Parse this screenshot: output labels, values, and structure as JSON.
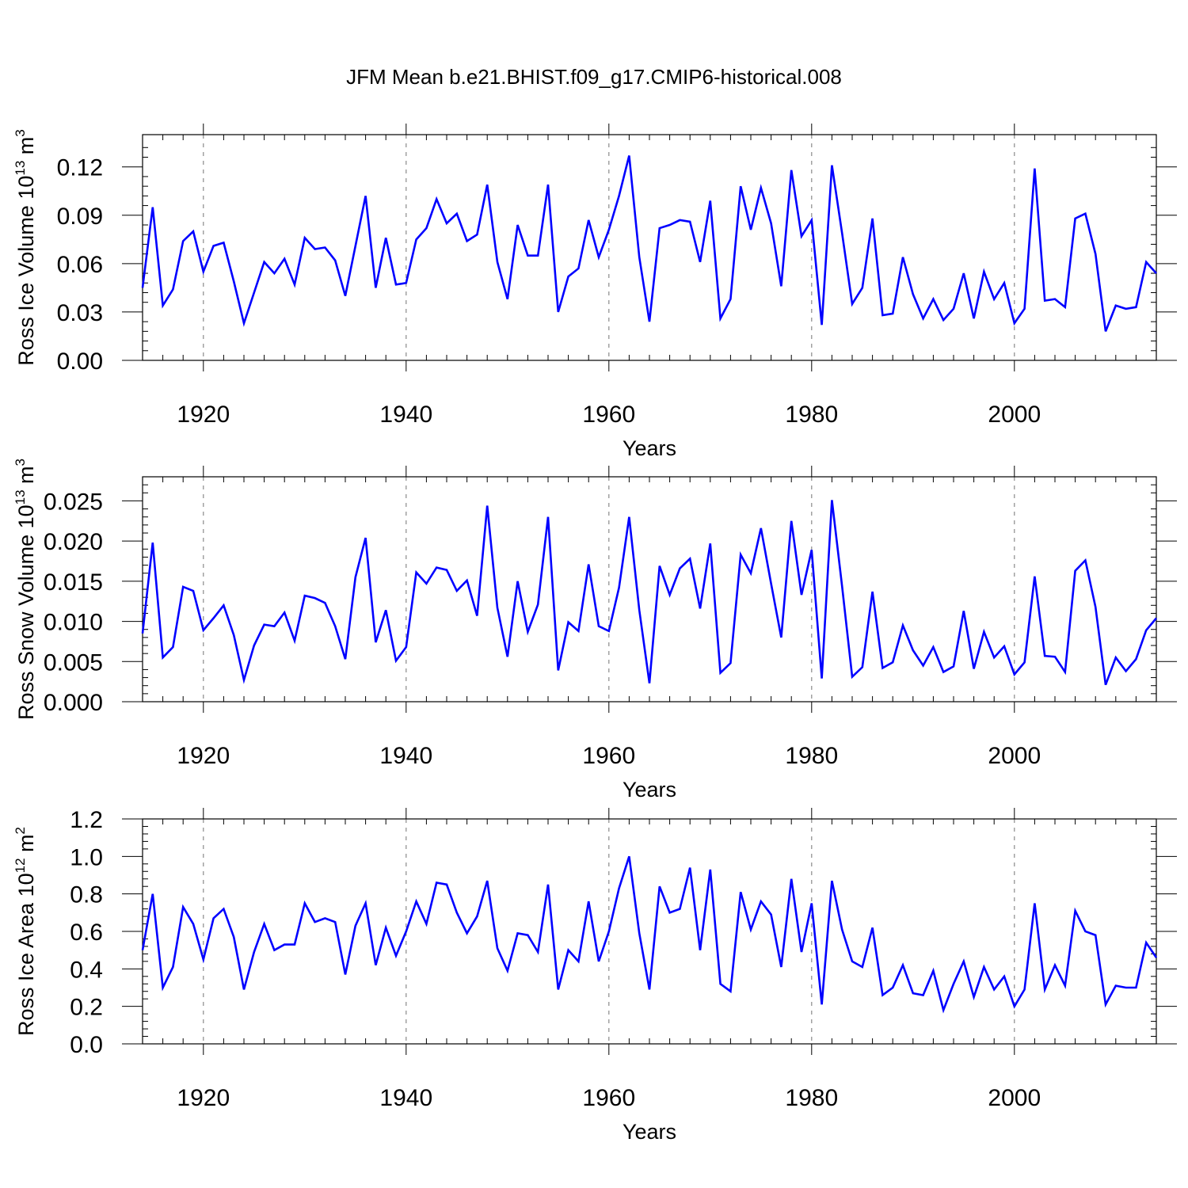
{
  "chart_data": {
    "type": "line",
    "title": "JFM Mean b.e21.BHIST.f09_g17.CMIP6-historical.008",
    "line_color": "#0000ff",
    "grid": "vertical dashed at major x ticks",
    "x": [
      1914,
      1915,
      1916,
      1917,
      1918,
      1919,
      1920,
      1921,
      1922,
      1923,
      1924,
      1925,
      1926,
      1927,
      1928,
      1929,
      1930,
      1931,
      1932,
      1933,
      1934,
      1935,
      1936,
      1937,
      1938,
      1939,
      1940,
      1941,
      1942,
      1943,
      1944,
      1945,
      1946,
      1947,
      1948,
      1949,
      1950,
      1951,
      1952,
      1953,
      1954,
      1955,
      1956,
      1957,
      1958,
      1959,
      1960,
      1961,
      1962,
      1963,
      1964,
      1965,
      1966,
      1967,
      1968,
      1969,
      1970,
      1971,
      1972,
      1973,
      1974,
      1975,
      1976,
      1977,
      1978,
      1979,
      1980,
      1981,
      1982,
      1983,
      1984,
      1985,
      1986,
      1987,
      1988,
      1989,
      1990,
      1991,
      1992,
      1993,
      1994,
      1995,
      1996,
      1997,
      1998,
      1999,
      2000,
      2001,
      2002,
      2003,
      2004,
      2005,
      2006,
      2007,
      2008,
      2009,
      2010,
      2011,
      2012,
      2013,
      2014
    ],
    "xlim": [
      1914,
      2014
    ],
    "x_ticks": [
      1920,
      1940,
      1960,
      1980,
      2000
    ],
    "x_tick_labels": [
      "1920",
      "1940",
      "1960",
      "1980",
      "2000"
    ],
    "panels": [
      {
        "name": "ross-ice-volume",
        "ylabel": "Ross Ice Volume 10",
        "ylabel_exp": "13",
        "ylabel_unit": " m",
        "ylabel_unit_exp": "3",
        "xlabel": "Years",
        "ylim": [
          0,
          0.14
        ],
        "y_ticks": [
          0,
          0.03,
          0.06,
          0.09,
          0.12
        ],
        "y_tick_labels": [
          "0.00",
          "0.03",
          "0.06",
          "0.09",
          "0.12"
        ],
        "y_minor_step": 0.006,
        "values": [
          0.045,
          0.095,
          0.034,
          0.044,
          0.074,
          0.08,
          0.055,
          0.071,
          0.073,
          0.049,
          0.023,
          0.042,
          0.061,
          0.054,
          0.063,
          0.047,
          0.076,
          0.069,
          0.07,
          0.062,
          0.04,
          0.071,
          0.102,
          0.045,
          0.076,
          0.047,
          0.048,
          0.075,
          0.082,
          0.1,
          0.085,
          0.091,
          0.074,
          0.078,
          0.109,
          0.061,
          0.038,
          0.084,
          0.065,
          0.065,
          0.109,
          0.03,
          0.052,
          0.057,
          0.087,
          0.064,
          0.081,
          0.102,
          0.127,
          0.064,
          0.024,
          0.082,
          0.084,
          0.087,
          0.086,
          0.061,
          0.099,
          0.026,
          0.038,
          0.108,
          0.081,
          0.107,
          0.085,
          0.046,
          0.118,
          0.077,
          0.087,
          0.022,
          0.121,
          0.079,
          0.035,
          0.045,
          0.088,
          0.028,
          0.029,
          0.064,
          0.041,
          0.026,
          0.038,
          0.025,
          0.032,
          0.054,
          0.026,
          0.055,
          0.038,
          0.048,
          0.023,
          0.032,
          0.119,
          0.037,
          0.038,
          0.033,
          0.088,
          0.091,
          0.066,
          0.018,
          0.034,
          0.032,
          0.033,
          0.061,
          0.054
        ]
      },
      {
        "name": "ross-snow-volume",
        "ylabel": "Ross Snow Volume 10",
        "ylabel_exp": "13",
        "ylabel_unit": " m",
        "ylabel_unit_exp": "3",
        "xlabel": "Years",
        "ylim": [
          0,
          0.028
        ],
        "y_ticks": [
          0,
          0.005,
          0.01,
          0.015,
          0.02,
          0.025
        ],
        "y_tick_labels": [
          "0.000",
          "0.005",
          "0.010",
          "0.015",
          "0.020",
          "0.025"
        ],
        "y_minor_step": 0.001,
        "values": [
          0.0085,
          0.0198,
          0.0055,
          0.0068,
          0.0143,
          0.0138,
          0.0089,
          0.0104,
          0.012,
          0.0083,
          0.0027,
          0.007,
          0.0096,
          0.0094,
          0.0111,
          0.0076,
          0.0132,
          0.0129,
          0.0123,
          0.0094,
          0.0053,
          0.0155,
          0.0204,
          0.0074,
          0.0114,
          0.0051,
          0.0068,
          0.0161,
          0.0147,
          0.0167,
          0.0164,
          0.0138,
          0.0151,
          0.0107,
          0.0244,
          0.0117,
          0.0056,
          0.015,
          0.0087,
          0.0121,
          0.023,
          0.0039,
          0.0099,
          0.0088,
          0.0171,
          0.0094,
          0.0088,
          0.0142,
          0.023,
          0.0114,
          0.0023,
          0.0169,
          0.0133,
          0.0166,
          0.0178,
          0.0116,
          0.0197,
          0.0036,
          0.0048,
          0.0183,
          0.016,
          0.0216,
          0.0147,
          0.008,
          0.0225,
          0.0133,
          0.0189,
          0.0029,
          0.0251,
          0.0144,
          0.0031,
          0.0043,
          0.0137,
          0.0042,
          0.0049,
          0.0095,
          0.0064,
          0.0045,
          0.0068,
          0.0037,
          0.0044,
          0.0113,
          0.0041,
          0.0087,
          0.0055,
          0.0069,
          0.0034,
          0.0049,
          0.0156,
          0.0057,
          0.0056,
          0.0037,
          0.0163,
          0.0176,
          0.0118,
          0.0021,
          0.0055,
          0.0038,
          0.0053,
          0.0089,
          0.0104
        ]
      },
      {
        "name": "ross-ice-area",
        "ylabel": "Ross Ice Area 10",
        "ylabel_exp": "12",
        "ylabel_unit": " m",
        "ylabel_unit_exp": "2",
        "xlabel": "Years",
        "ylim": [
          0,
          1.2
        ],
        "y_ticks": [
          0,
          0.2,
          0.4,
          0.6,
          0.8,
          1.0,
          1.2
        ],
        "y_tick_labels": [
          "0.0",
          "0.2",
          "0.4",
          "0.6",
          "0.8",
          "1.0",
          "1.2"
        ],
        "y_minor_step": 0.04,
        "values": [
          0.5,
          0.8,
          0.3,
          0.41,
          0.73,
          0.64,
          0.45,
          0.67,
          0.72,
          0.57,
          0.29,
          0.49,
          0.64,
          0.5,
          0.53,
          0.53,
          0.75,
          0.65,
          0.67,
          0.65,
          0.37,
          0.63,
          0.75,
          0.42,
          0.62,
          0.47,
          0.6,
          0.76,
          0.64,
          0.86,
          0.85,
          0.7,
          0.59,
          0.68,
          0.87,
          0.51,
          0.39,
          0.59,
          0.58,
          0.49,
          0.85,
          0.29,
          0.5,
          0.44,
          0.76,
          0.44,
          0.6,
          0.83,
          1.0,
          0.59,
          0.29,
          0.84,
          0.7,
          0.72,
          0.94,
          0.5,
          0.93,
          0.32,
          0.28,
          0.81,
          0.61,
          0.76,
          0.69,
          0.41,
          0.88,
          0.49,
          0.75,
          0.21,
          0.87,
          0.61,
          0.44,
          0.41,
          0.62,
          0.26,
          0.3,
          0.42,
          0.27,
          0.26,
          0.39,
          0.18,
          0.32,
          0.44,
          0.25,
          0.41,
          0.29,
          0.36,
          0.2,
          0.29,
          0.75,
          0.29,
          0.42,
          0.31,
          0.71,
          0.6,
          0.58,
          0.21,
          0.31,
          0.3,
          0.3,
          0.54,
          0.46
        ]
      }
    ]
  }
}
